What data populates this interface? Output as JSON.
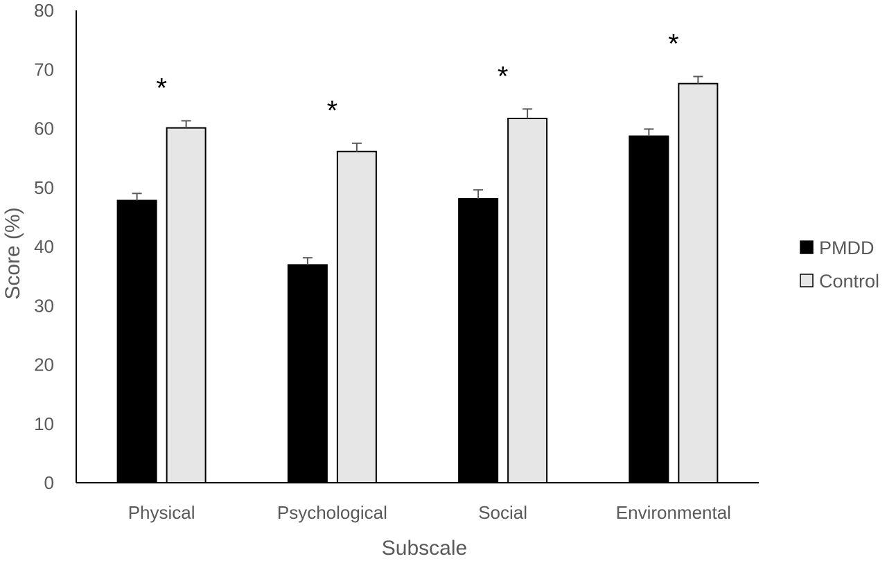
{
  "chart_data": {
    "type": "bar",
    "title": "",
    "xlabel": "Subscale",
    "ylabel": "Score (%)",
    "ylim": [
      0,
      80
    ],
    "yticks": [
      0,
      10,
      20,
      30,
      40,
      50,
      60,
      70,
      80
    ],
    "categories": [
      "Physical",
      "Psychological",
      "Social",
      "Environmental"
    ],
    "series": [
      {
        "name": "PMDD",
        "color": "#000000",
        "values": [
          47.8,
          36.9,
          48.1,
          58.7
        ],
        "errors": [
          1.2,
          1.2,
          1.5,
          1.2
        ]
      },
      {
        "name": "Control",
        "color": "#e6e6e6",
        "values": [
          60.1,
          56.1,
          61.7,
          67.6
        ],
        "errors": [
          1.2,
          1.4,
          1.6,
          1.2
        ]
      }
    ],
    "significance": [
      "*",
      "*",
      "*",
      "*"
    ],
    "legend_position": "right",
    "grid": false
  }
}
